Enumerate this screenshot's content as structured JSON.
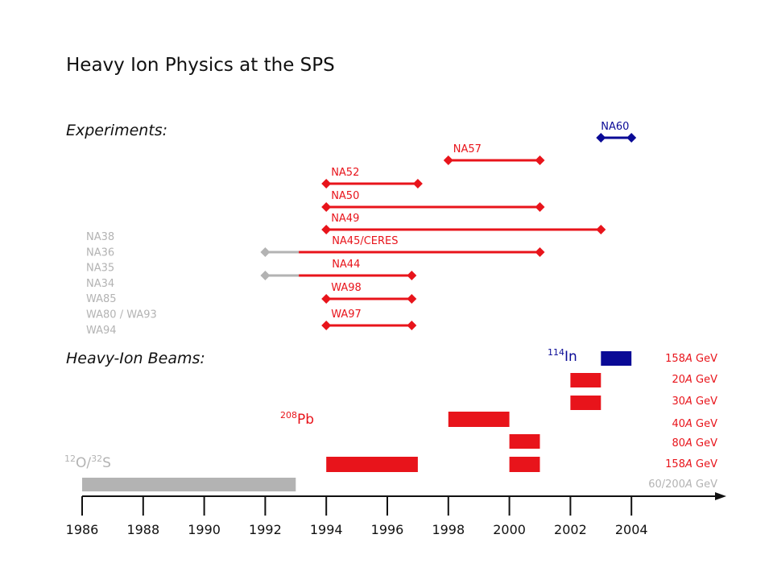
{
  "title": "Heavy Ion Physics at the SPS",
  "experiments_heading": "Experiments:",
  "beams_heading": "Heavy-Ion Beams:",
  "colors": {
    "red": "#e8141b",
    "blue": "#0a0a96",
    "gray": "#b3b3b3",
    "dark": "#111111"
  },
  "old_experiments": [
    "NA38",
    "NA36",
    "NA35",
    "NA34",
    "WA85",
    "WA80 / WA93",
    "WA94"
  ],
  "experiments": [
    {
      "name": "NA60",
      "start": 2003,
      "end": 2004,
      "color": "blue"
    },
    {
      "name": "NA57",
      "start": 1998,
      "end": 2001,
      "color": "red"
    },
    {
      "name": "NA52",
      "start": 1994,
      "end": 1997,
      "color": "red"
    },
    {
      "name": "NA50",
      "start": 1994,
      "end": 2001,
      "color": "red"
    },
    {
      "name": "NA49",
      "start": 1994,
      "end": 2003,
      "color": "red"
    },
    {
      "name": "NA45/CERES",
      "start": 1992,
      "gray_until": 1993.1,
      "end": 2001,
      "color": "red"
    },
    {
      "name": "NA44",
      "start": 1992,
      "gray_until": 1993.1,
      "end": 1996.8,
      "color": "red"
    },
    {
      "name": "WA98",
      "start": 1994,
      "end": 1996.8,
      "color": "red"
    },
    {
      "name": "WA97",
      "start": 1994,
      "end": 1996.8,
      "color": "red"
    }
  ],
  "ions": [
    {
      "mass": "114",
      "symbol": "In",
      "color": "blue"
    },
    {
      "mass": "208",
      "symbol": "Pb",
      "color": "red"
    },
    {
      "mass1": "12",
      "symbol1": "O/",
      "mass2": "32",
      "symbol2": "S",
      "color": "gray"
    }
  ],
  "energies": [
    {
      "pre": "158",
      "A": "A",
      "unit": " GeV",
      "color": "red"
    },
    {
      "pre": "20",
      "A": "A",
      "unit": " GeV",
      "color": "red"
    },
    {
      "pre": "30",
      "A": "A",
      "unit": " GeV",
      "color": "red"
    },
    {
      "pre": "40",
      "A": "A",
      "unit": " GeV",
      "color": "red"
    },
    {
      "pre": "80",
      "A": "A",
      "unit": " GeV",
      "color": "red"
    },
    {
      "pre": "158",
      "A": "A",
      "unit": " GeV",
      "color": "red"
    },
    {
      "pre": "60/200",
      "A": "A",
      "unit": " GeV",
      "color": "gray"
    }
  ],
  "beam_periods": [
    {
      "ion": "In",
      "start": 2003,
      "end": 2004,
      "row": 0,
      "color": "blue"
    },
    {
      "ion": "Pb",
      "start": 2002,
      "end": 2003,
      "row": 1,
      "color": "red"
    },
    {
      "ion": "Pb",
      "start": 2002,
      "end": 2003,
      "row": 2,
      "color": "red"
    },
    {
      "ion": "Pb",
      "start": 1998,
      "end": 2000,
      "row": 3,
      "color": "red"
    },
    {
      "ion": "Pb",
      "start": 2000,
      "end": 2001,
      "row": 4,
      "color": "red"
    },
    {
      "ion": "Pb",
      "start": 1994,
      "end": 1997,
      "row": 5,
      "color": "red"
    },
    {
      "ion": "Pb",
      "start": 2000,
      "end": 2001,
      "row": 5,
      "color": "red"
    },
    {
      "ion": "O/S",
      "start": 1986,
      "end": 1993,
      "row": 6,
      "color": "gray"
    }
  ],
  "years": [
    "1986",
    "1988",
    "1990",
    "1992",
    "1994",
    "1996",
    "1998",
    "2000",
    "2002",
    "2004"
  ]
}
